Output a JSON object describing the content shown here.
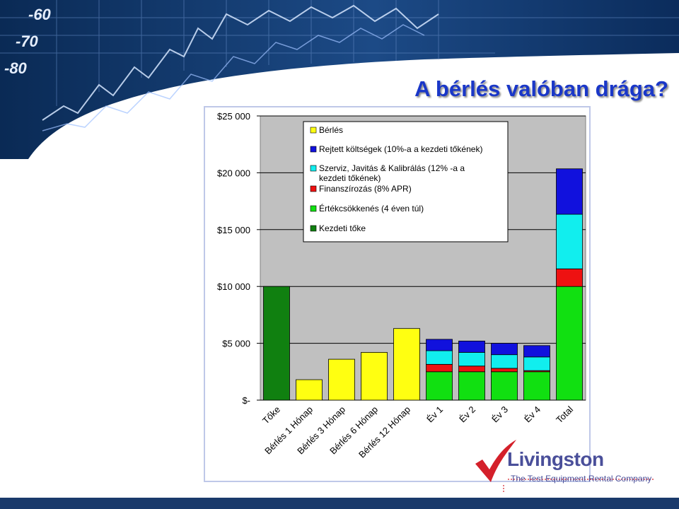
{
  "slide": {
    "title": "A bérlés valóban drága?"
  },
  "banner": {
    "axis_numbers": [
      "-60",
      "-70",
      "-80"
    ]
  },
  "logo": {
    "name": "Livingston",
    "tagline": "The Test Equipment Rental Company",
    "check_color": "#d4202a"
  },
  "colors": {
    "title": "#1a37c8",
    "banner_dark": "#0a2a55",
    "footer": "#1a3a6b"
  },
  "chart_data": {
    "type": "bar",
    "stacked": true,
    "categories": [
      "Tőke",
      "Bérlés 1 Hónap",
      "Bérlés 3 Hónap",
      "Bérlés 6 Hónap",
      "Bérlés 12 Hónap",
      "Év 1",
      "Év 2",
      "Év 3",
      "Év 4",
      "Total"
    ],
    "series": [
      {
        "name": "Kezdeti tőke",
        "color": "#108010",
        "values": [
          10000,
          0,
          0,
          0,
          0,
          0,
          0,
          0,
          0,
          0
        ]
      },
      {
        "name": "Értékcsökkenés (4 éven túl)",
        "color": "#11e011",
        "values": [
          0,
          0,
          0,
          0,
          0,
          2500,
          2500,
          2500,
          2500,
          10000
        ]
      },
      {
        "name": "Finanszírozás (8% APR)",
        "color": "#ee1111",
        "values": [
          0,
          0,
          0,
          0,
          0,
          650,
          500,
          300,
          100,
          1550
        ]
      },
      {
        "name": "Szerviz, Javitás & Kalibrálás (12% -a a kezdeti tőkének)",
        "color": "#11eeee",
        "values": [
          0,
          0,
          0,
          0,
          0,
          1200,
          1200,
          1200,
          1200,
          4800
        ]
      },
      {
        "name": "Rejtett költségek (10%-a a kezdeti tőkének)",
        "color": "#1111dd",
        "values": [
          0,
          0,
          0,
          0,
          0,
          1000,
          1000,
          1000,
          1000,
          4000
        ]
      },
      {
        "name": "Bérlés",
        "color": "#ffff11",
        "values": [
          0,
          1800,
          3600,
          4200,
          6300,
          0,
          0,
          0,
          0,
          0
        ]
      }
    ],
    "legend_order": [
      "Bérlés",
      "Rejtett költségek (10%-a a kezdeti tőkének)",
      "Szerviz, Javitás & Kalibrálás (12% -a a kezdeti tőkének)",
      "Finanszírozás (8% APR)",
      "Értékcsökkenés (4 éven túl)",
      "Kezdeti tőke"
    ],
    "y_ticks": [
      0,
      5000,
      10000,
      15000,
      20000,
      25000
    ],
    "y_tick_labels": [
      "$-",
      "$5 000",
      "$10 000",
      "$15 000",
      "$20 000",
      "$25 000"
    ],
    "ylim": [
      0,
      25000
    ],
    "plot_background": "#c0c0c0",
    "grid": true,
    "legend_position": "top"
  }
}
